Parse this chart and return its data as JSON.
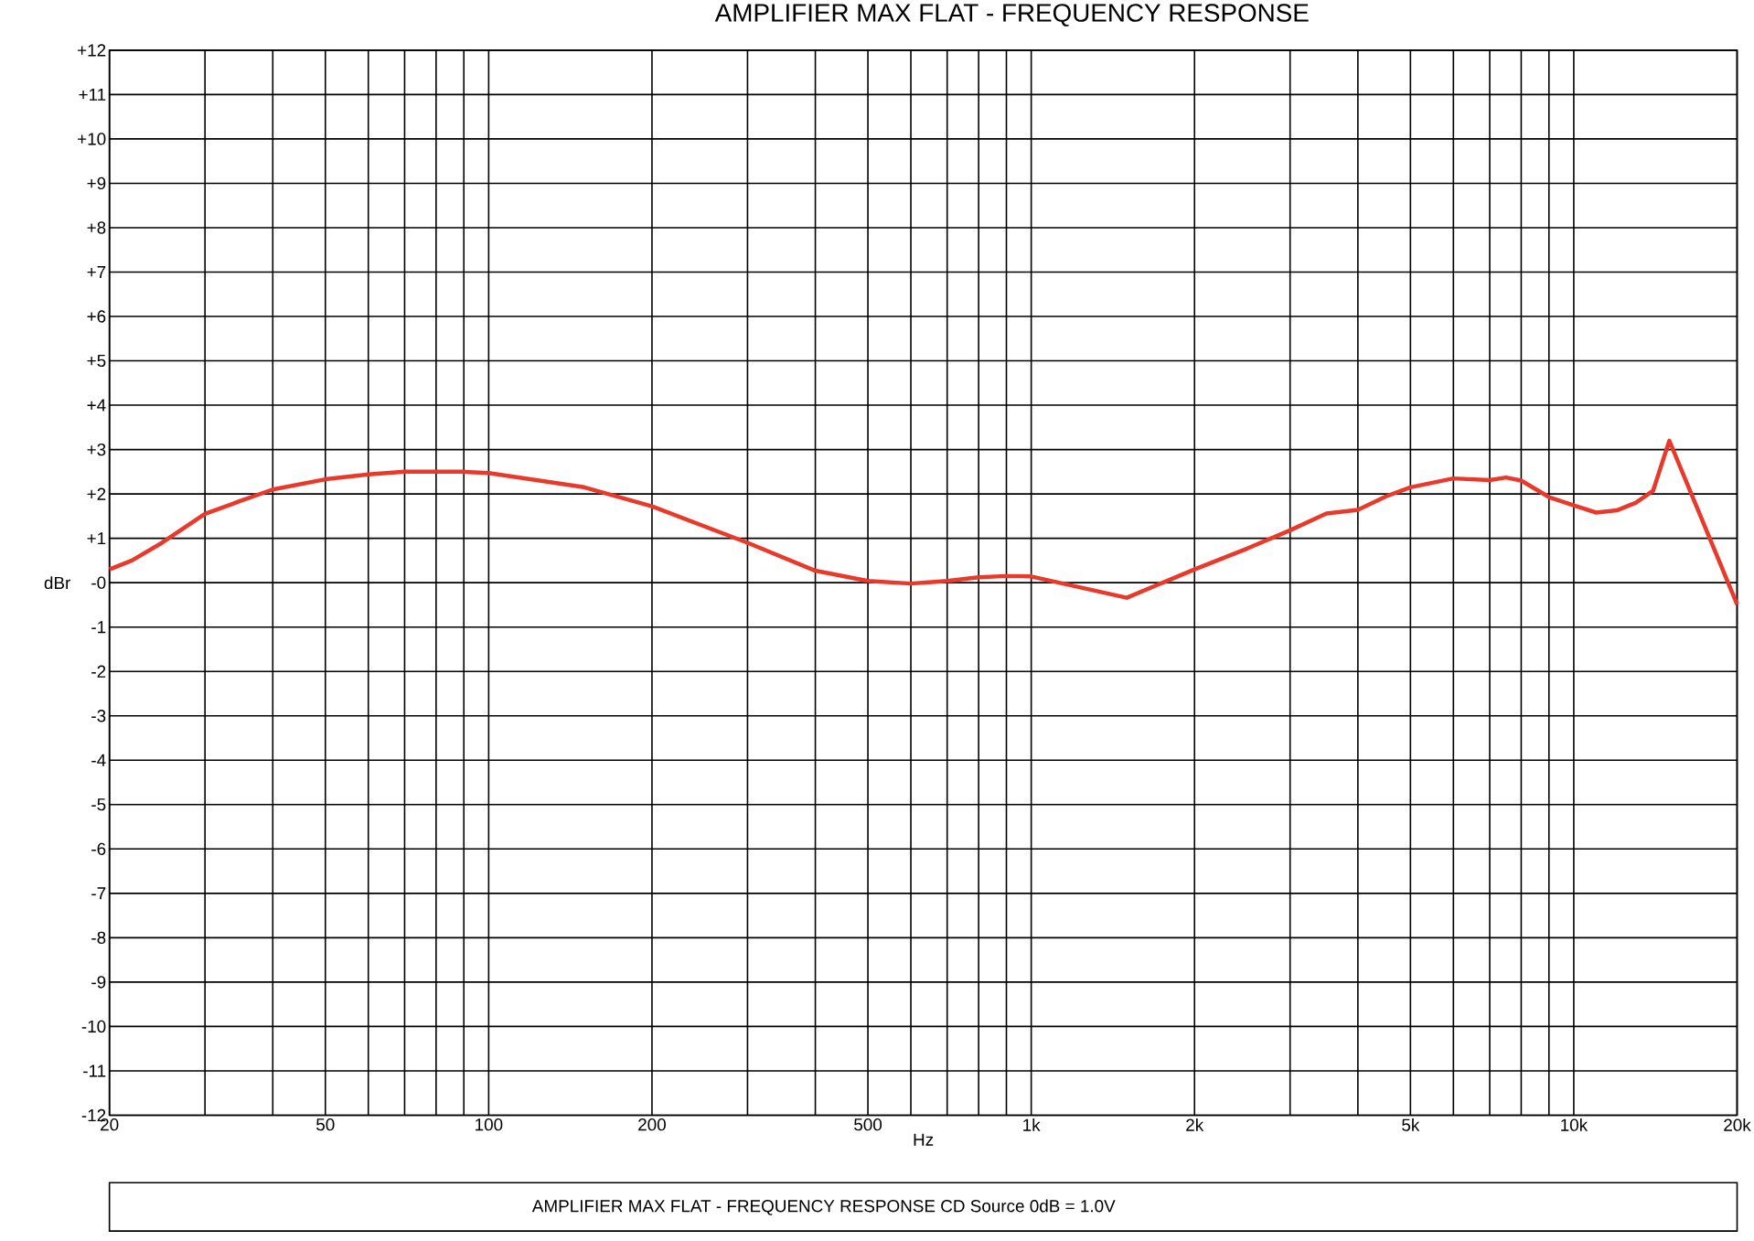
{
  "chart_data": {
    "type": "line",
    "title": "AMPLIFIER MAX FLAT  -  FREQUENCY RESPONSE",
    "xlabel": "Hz",
    "ylabel": "dBr",
    "annotations": [
      "AMPLIFIER MAX FLAT  -  FREQUENCY RESPONSE    CD Source    0dB = 1.0V"
    ],
    "log": "x",
    "grid": true,
    "marker": "none",
    "line_style": "solid",
    "xlim": [
      20,
      20000
    ],
    "ylim": [
      -12,
      12
    ],
    "xticks": [
      20,
      {
        "value": 30,
        "label": null
      },
      {
        "value": 40,
        "label": null
      },
      50,
      {
        "value": 60,
        "label": null
      },
      {
        "value": 70,
        "label": null
      },
      {
        "value": 80,
        "label": null
      },
      {
        "value": 90,
        "label": null
      },
      100,
      200,
      {
        "value": 300,
        "label": null
      },
      {
        "value": 400,
        "label": null
      },
      500,
      {
        "value": 600,
        "label": null
      },
      {
        "value": 700,
        "label": null
      },
      {
        "value": 800,
        "label": null
      },
      {
        "value": 900,
        "label": null
      },
      {
        "value": 1000,
        "label": "1k"
      },
      {
        "value": 2000,
        "label": "2k"
      },
      {
        "value": 3000,
        "label": null
      },
      {
        "value": 4000,
        "label": null
      },
      {
        "value": 5000,
        "label": "5k"
      },
      {
        "value": 6000,
        "label": null
      },
      {
        "value": 7000,
        "label": null
      },
      {
        "value": 8000,
        "label": null
      },
      {
        "value": 9000,
        "label": null
      },
      {
        "value": 10000,
        "label": "10k"
      },
      {
        "value": 20000,
        "label": "20k"
      }
    ],
    "yticks": [
      {
        "value": 12,
        "label": "+12"
      },
      {
        "value": 11,
        "label": "+11"
      },
      {
        "value": 10,
        "label": "+10"
      },
      {
        "value": 9,
        "label": "+9"
      },
      {
        "value": 8,
        "label": "+8"
      },
      {
        "value": 7,
        "label": "+7"
      },
      {
        "value": 6,
        "label": "+6"
      },
      {
        "value": 5,
        "label": "+5"
      },
      {
        "value": 4,
        "label": "+4"
      },
      {
        "value": 3,
        "label": "+3"
      },
      {
        "value": 2,
        "label": "+2"
      },
      {
        "value": 1,
        "label": "+1"
      },
      {
        "value": 0,
        "label": "-0"
      },
      -1,
      -2,
      -3,
      -4,
      -5,
      -6,
      -7,
      -8,
      -9,
      -10,
      -11,
      -12
    ],
    "x": [
      20,
      22,
      25,
      30,
      35,
      40,
      50,
      60,
      70,
      80,
      90,
      100,
      150,
      200,
      300,
      400,
      500,
      600,
      700,
      800,
      900,
      1000,
      1500,
      2000,
      2500,
      3000,
      3500,
      4000,
      4500,
      5000,
      6000,
      7000,
      7500,
      8000,
      9000,
      10000,
      11000,
      12000,
      13000,
      14000,
      15000,
      20000
    ],
    "series": [
      {
        "color": "#e8392b",
        "values": [
          0.3,
          0.5,
          0.9,
          1.55,
          1.85,
          2.1,
          2.33,
          2.44,
          2.5,
          2.5,
          2.5,
          2.47,
          2.15,
          1.72,
          0.9,
          0.27,
          0.04,
          -0.02,
          0.04,
          0.12,
          0.15,
          0.14,
          -0.34,
          0.3,
          0.77,
          1.18,
          1.56,
          1.64,
          1.94,
          2.15,
          2.35,
          2.31,
          2.37,
          2.3,
          1.93,
          1.74,
          1.58,
          1.63,
          1.8,
          2.07,
          3.2,
          -0.49
        ]
      }
    ]
  }
}
